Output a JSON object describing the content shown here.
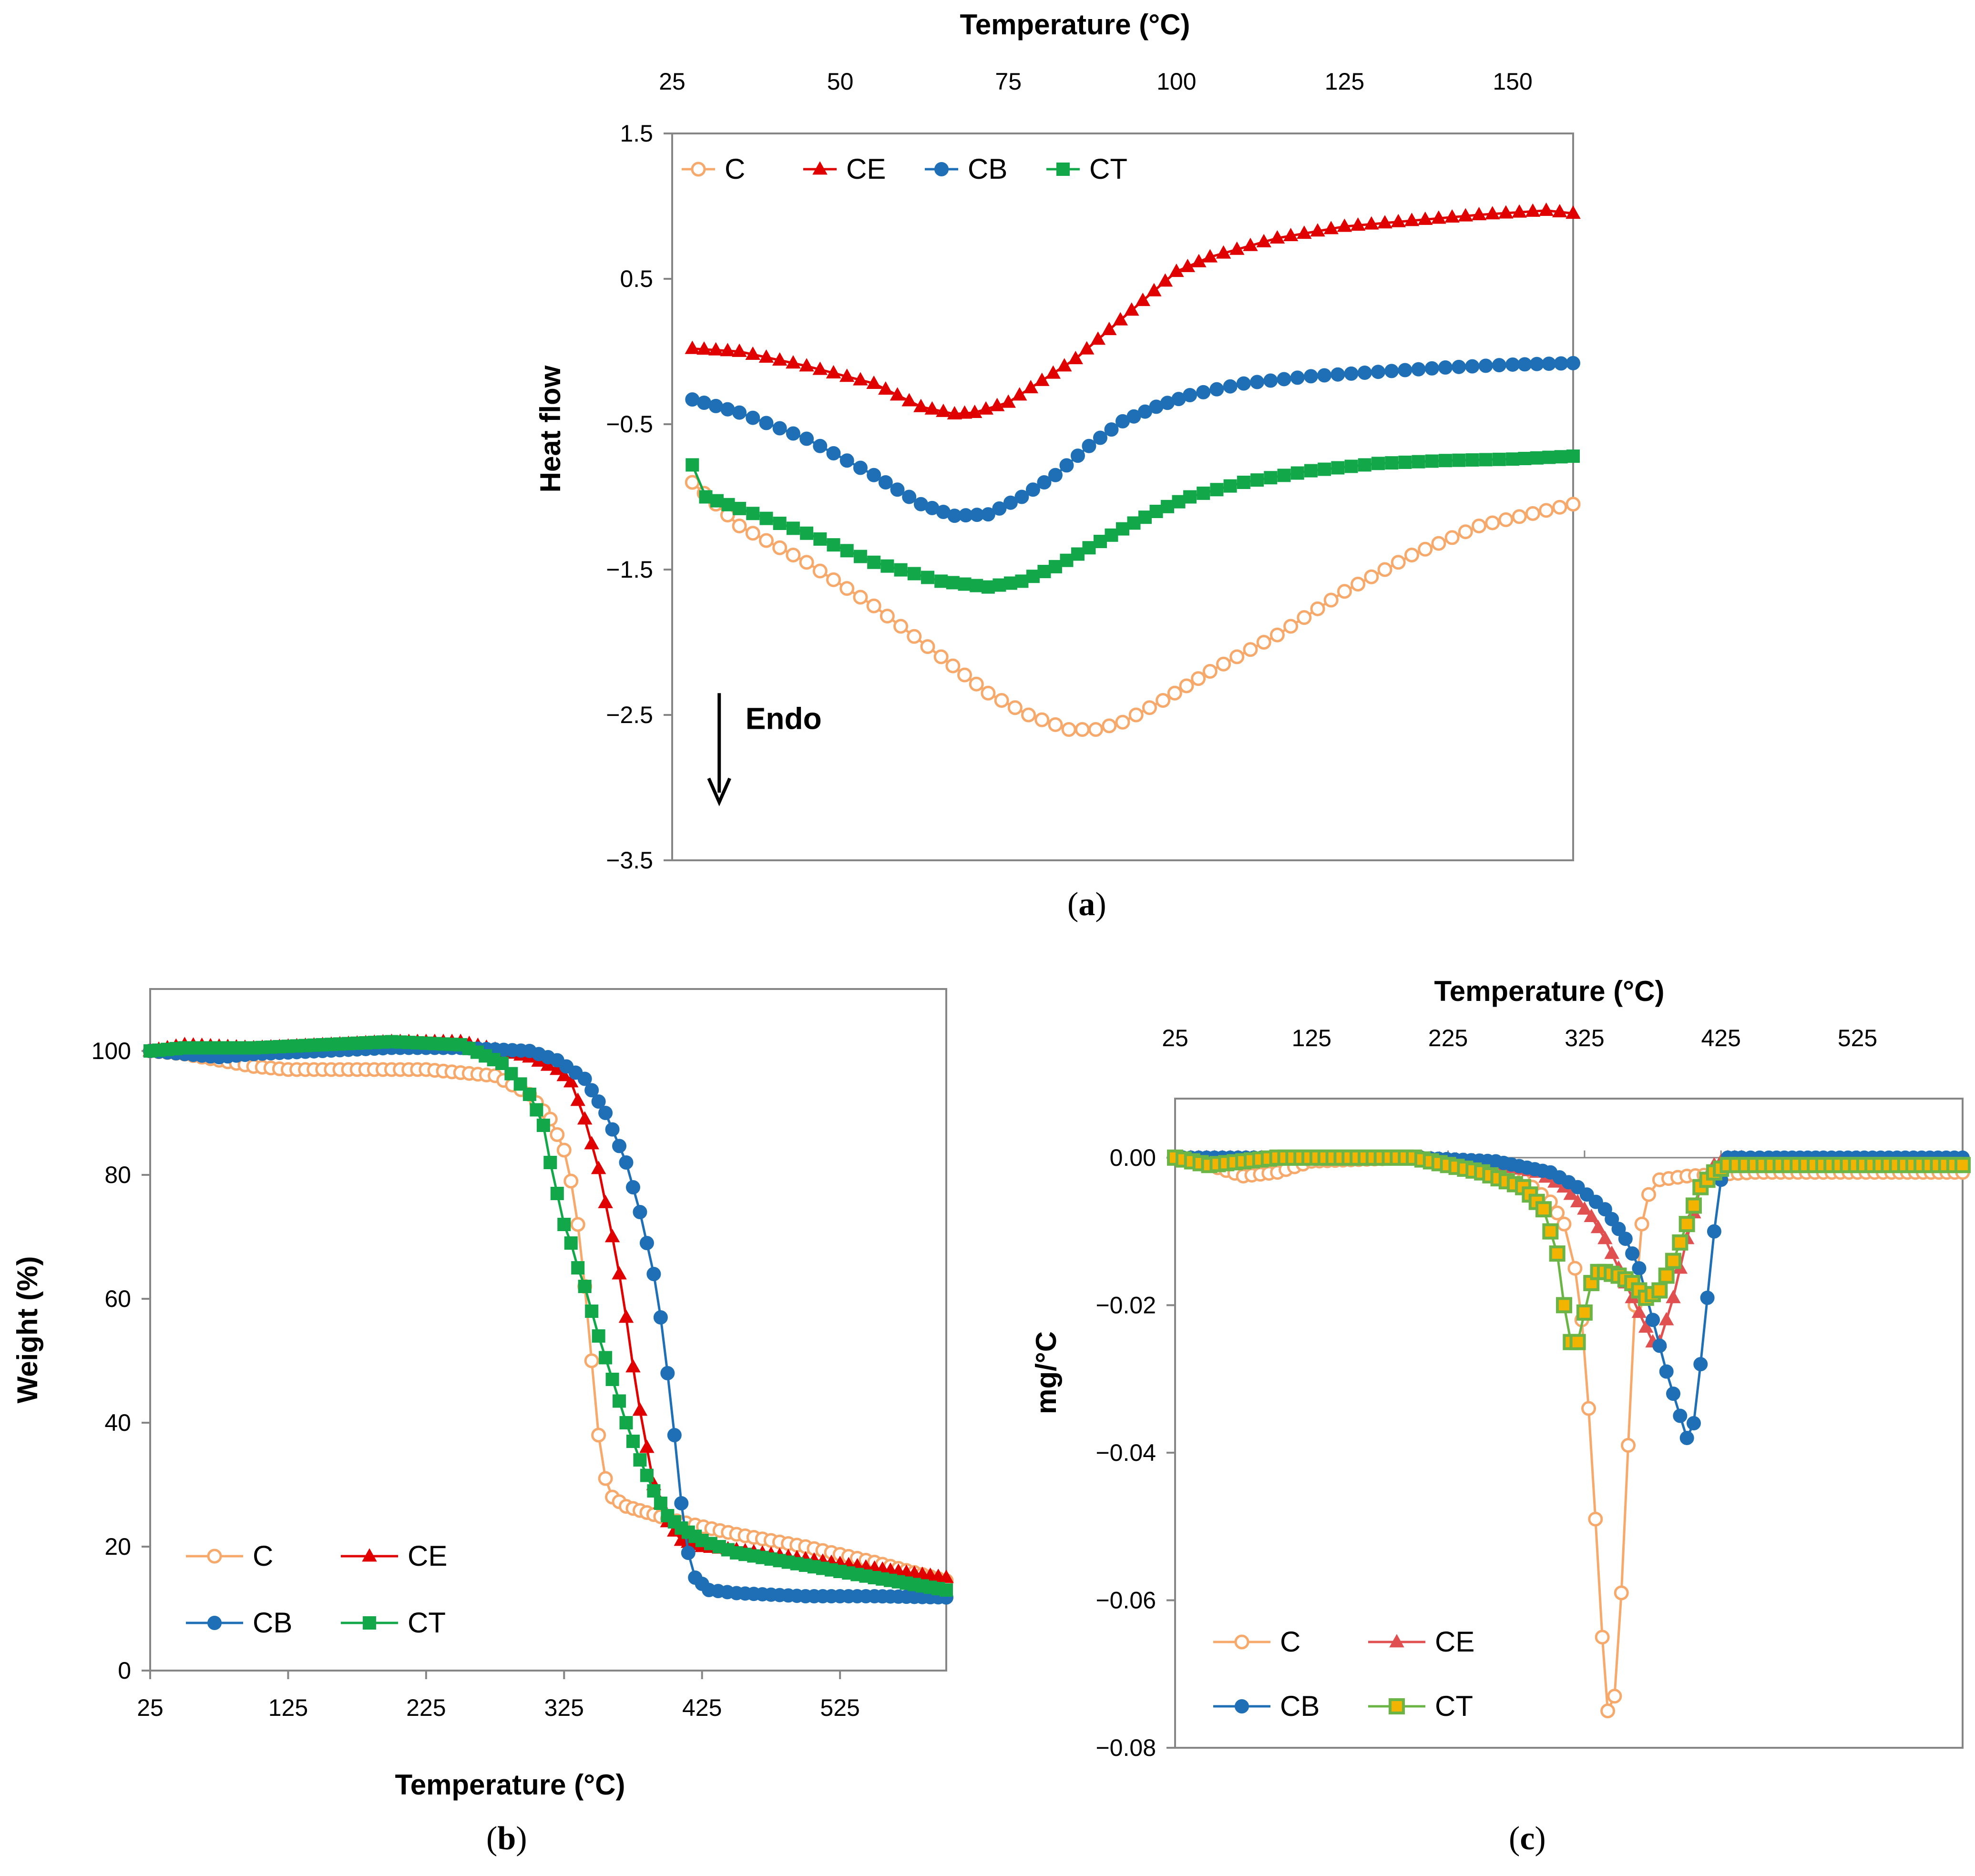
{
  "chart_data": [
    {
      "id": "a",
      "type": "line",
      "caption": "a",
      "title": "",
      "xlabel": "Temperature (°C)",
      "ylabel": "Heat flow",
      "x_axis_position": "top",
      "xlim": [
        25,
        159
      ],
      "ylim": [
        -3.5,
        1.5
      ],
      "xticks": [
        25,
        50,
        75,
        100,
        125,
        150
      ],
      "xtick_labels": [
        "25",
        "50",
        "75",
        "100",
        "125",
        "150"
      ],
      "yticks": [
        1.5,
        0.5,
        -0.5,
        -1.5,
        -2.5,
        -3.5
      ],
      "ytick_labels": [
        "1.5",
        "0.5",
        "−0.5",
        "−1.5",
        "−2.5",
        "−3.5"
      ],
      "grid": false,
      "legend": "top-left",
      "annotation": {
        "text": "Endo",
        "x": 32,
        "y_from": -2.35,
        "y_to": -3.1
      },
      "series": [
        {
          "name": "C",
          "color": "#F6A96B",
          "marker": "circle-open",
          "x": [
            28,
            35,
            45,
            55,
            65,
            72,
            78,
            84,
            88,
            92,
            98,
            105,
            115,
            125,
            135,
            145,
            159
          ],
          "y": [
            -0.9,
            -1.2,
            -1.45,
            -1.75,
            -2.1,
            -2.35,
            -2.5,
            -2.6,
            -2.6,
            -2.55,
            -2.4,
            -2.2,
            -1.95,
            -1.65,
            -1.4,
            -1.2,
            -1.05
          ]
        },
        {
          "name": "CE",
          "color": "#E00000",
          "marker": "triangle",
          "x": [
            28,
            35,
            45,
            55,
            62,
            67,
            70,
            75,
            80,
            85,
            90,
            95,
            100,
            105,
            115,
            125,
            135,
            145,
            155,
            159
          ],
          "y": [
            0.02,
            0.0,
            -0.1,
            -0.22,
            -0.38,
            -0.43,
            -0.42,
            -0.35,
            -0.2,
            -0.05,
            0.15,
            0.35,
            0.55,
            0.65,
            0.78,
            0.86,
            0.9,
            0.94,
            0.97,
            0.95
          ]
        },
        {
          "name": "CB",
          "color": "#1F6FB6",
          "marker": "circle",
          "x": [
            28,
            35,
            45,
            55,
            62,
            67,
            72,
            77,
            82,
            87,
            92,
            97,
            102,
            110,
            120,
            130,
            140,
            150,
            159
          ],
          "y": [
            -0.33,
            -0.42,
            -0.6,
            -0.85,
            -1.05,
            -1.13,
            -1.12,
            -1.0,
            -0.85,
            -0.65,
            -0.48,
            -0.38,
            -0.3,
            -0.22,
            -0.17,
            -0.14,
            -0.11,
            -0.09,
            -0.08
          ]
        },
        {
          "name": "CT",
          "color": "#12A84A",
          "marker": "square",
          "x": [
            28,
            30,
            35,
            45,
            55,
            65,
            72,
            77,
            82,
            87,
            92,
            97,
            102,
            110,
            120,
            130,
            140,
            150,
            159
          ],
          "y": [
            -0.78,
            -1.0,
            -1.08,
            -1.25,
            -1.45,
            -1.58,
            -1.62,
            -1.58,
            -1.48,
            -1.35,
            -1.22,
            -1.1,
            -1.0,
            -0.9,
            -0.82,
            -0.77,
            -0.75,
            -0.74,
            -0.72
          ]
        }
      ]
    },
    {
      "id": "b",
      "type": "line",
      "caption": "b",
      "title": "",
      "xlabel": "Temperature (°C)",
      "ylabel": "Weight (%)",
      "x_axis_position": "bottom",
      "xlim": [
        25,
        602
      ],
      "ylim": [
        0,
        110
      ],
      "xticks": [
        25,
        125,
        225,
        325,
        425,
        525
      ],
      "xtick_labels": [
        "25",
        "125",
        "225",
        "325",
        "425",
        "525"
      ],
      "yticks": [
        0,
        20,
        40,
        60,
        80,
        100
      ],
      "ytick_labels": [
        "0",
        "20",
        "40",
        "60",
        "80",
        "100"
      ],
      "grid": false,
      "legend": "bottom-left",
      "series": [
        {
          "name": "C",
          "color": "#F6A96B",
          "marker": "circle-open",
          "x": [
            25,
            50,
            75,
            100,
            125,
            175,
            225,
            275,
            300,
            315,
            325,
            330,
            335,
            340,
            345,
            350,
            355,
            360,
            370,
            385,
            400,
            420,
            450,
            500,
            550,
            602
          ],
          "y": [
            100,
            99.5,
            98.5,
            97.5,
            97,
            97,
            97,
            96,
            93,
            89,
            84,
            79,
            72,
            62,
            50,
            38,
            31,
            28,
            26.5,
            25.5,
            24.5,
            23.5,
            22,
            20,
            17.5,
            14.5
          ]
        },
        {
          "name": "CE",
          "color": "#E00000",
          "marker": "triangle",
          "x": [
            25,
            50,
            100,
            150,
            200,
            250,
            300,
            320,
            330,
            340,
            350,
            360,
            365,
            370,
            375,
            380,
            385,
            390,
            400,
            410,
            425,
            450,
            500,
            550,
            602
          ],
          "y": [
            100,
            101,
            100.5,
            101,
            101.5,
            101.5,
            99,
            97,
            95,
            89,
            81,
            70,
            64,
            57,
            49,
            42,
            36,
            30,
            24,
            21,
            20,
            19.5,
            18,
            16.5,
            15
          ]
        },
        {
          "name": "CB",
          "color": "#1F6FB6",
          "marker": "circle",
          "x": [
            25,
            50,
            75,
            100,
            150,
            200,
            250,
            300,
            320,
            340,
            355,
            370,
            380,
            390,
            395,
            400,
            405,
            410,
            415,
            420,
            430,
            450,
            500,
            550,
            602
          ],
          "y": [
            100,
            99.5,
            99,
            99.5,
            100,
            100.5,
            100.5,
            100,
            98.5,
            95.5,
            90,
            82,
            74,
            64,
            57,
            48,
            38,
            27,
            19,
            15,
            13,
            12.5,
            12,
            12,
            11.8
          ]
        },
        {
          "name": "CT",
          "color": "#12A84A",
          "marker": "square",
          "x": [
            25,
            50,
            100,
            150,
            200,
            250,
            280,
            300,
            310,
            315,
            320,
            325,
            330,
            335,
            340,
            345,
            350,
            360,
            370,
            380,
            390,
            400,
            410,
            425,
            450,
            500,
            550,
            602
          ],
          "y": [
            100,
            100.5,
            100.5,
            101,
            101.5,
            101,
            98,
            93,
            88,
            82,
            77,
            72,
            69,
            65,
            62,
            58,
            54,
            47,
            40,
            34,
            29,
            25,
            23,
            21,
            19,
            17,
            15,
            13
          ]
        }
      ]
    },
    {
      "id": "c",
      "type": "line",
      "caption": "c",
      "title": "",
      "xlabel": "Temperature (°C)",
      "ylabel": "mg/°C",
      "x_axis_position": "top",
      "xlim": [
        25,
        602
      ],
      "ylim": [
        -0.08,
        0.008
      ],
      "xticks": [
        25,
        125,
        225,
        325,
        425,
        525
      ],
      "xtick_labels": [
        "25",
        "125",
        "225",
        "325",
        "425",
        "525"
      ],
      "yticks": [
        0,
        -0.02,
        -0.04,
        -0.06,
        -0.08
      ],
      "ytick_labels": [
        "0.00",
        "−0.02",
        "−0.04",
        "−0.06",
        "−0.08"
      ],
      "grid": false,
      "legend": "bottom-left",
      "series": [
        {
          "name": "C",
          "color": "#F6A96B",
          "marker": "circle-open",
          "x": [
            25,
            50,
            75,
            100,
            125,
            200,
            250,
            280,
            300,
            310,
            318,
            323,
            328,
            333,
            338,
            342,
            347,
            352,
            357,
            362,
            367,
            372,
            380,
            400,
            450,
            500,
            550,
            602
          ],
          "y": [
            0.0,
            -0.001,
            -0.0025,
            -0.002,
            -0.0005,
            0.0,
            -0.001,
            -0.003,
            -0.006,
            -0.009,
            -0.015,
            -0.022,
            -0.034,
            -0.049,
            -0.065,
            -0.075,
            -0.073,
            -0.059,
            -0.039,
            -0.02,
            -0.009,
            -0.005,
            -0.003,
            -0.0025,
            -0.002,
            -0.002,
            -0.002,
            -0.002
          ]
        },
        {
          "name": "CE",
          "color": "#E05050",
          "marker": "triangle",
          "x": [
            25,
            100,
            200,
            250,
            290,
            310,
            320,
            330,
            340,
            350,
            360,
            370,
            375,
            380,
            390,
            400,
            410,
            420,
            430,
            440,
            460,
            500,
            602
          ],
          "y": [
            0.0,
            0.0,
            0.0,
            -0.0005,
            -0.002,
            -0.004,
            -0.006,
            -0.008,
            -0.011,
            -0.015,
            -0.019,
            -0.023,
            -0.025,
            -0.025,
            -0.019,
            -0.011,
            -0.004,
            -0.001,
            0.0,
            0.0,
            -0.0005,
            -0.001,
            -0.001
          ]
        },
        {
          "name": "CB",
          "color": "#1F6FB6",
          "marker": "circle",
          "x": [
            25,
            100,
            200,
            260,
            300,
            320,
            340,
            355,
            365,
            375,
            385,
            395,
            400,
            405,
            410,
            415,
            420,
            425,
            430,
            440,
            460,
            500,
            602
          ],
          "y": [
            0.0,
            0.0,
            0.0,
            -0.0005,
            -0.002,
            -0.004,
            -0.007,
            -0.011,
            -0.015,
            -0.022,
            -0.029,
            -0.035,
            -0.038,
            -0.036,
            -0.028,
            -0.019,
            -0.01,
            -0.003,
            0.0,
            0.0,
            0.0,
            0.0,
            0.0
          ]
        },
        {
          "name": "CT",
          "color": "#6BB547",
          "marker": "square-filled-green",
          "x": [
            25,
            50,
            100,
            200,
            250,
            280,
            295,
            305,
            310,
            315,
            320,
            325,
            330,
            335,
            340,
            350,
            360,
            370,
            380,
            390,
            400,
            410,
            420,
            430,
            450,
            500,
            602
          ],
          "y": [
            0.0,
            -0.001,
            0.0,
            0.0,
            -0.002,
            -0.004,
            -0.007,
            -0.013,
            -0.02,
            -0.025,
            -0.025,
            -0.021,
            -0.017,
            -0.0155,
            -0.0155,
            -0.016,
            -0.017,
            -0.019,
            -0.018,
            -0.014,
            -0.009,
            -0.004,
            -0.002,
            -0.001,
            -0.001,
            -0.001,
            -0.001
          ]
        }
      ]
    }
  ]
}
